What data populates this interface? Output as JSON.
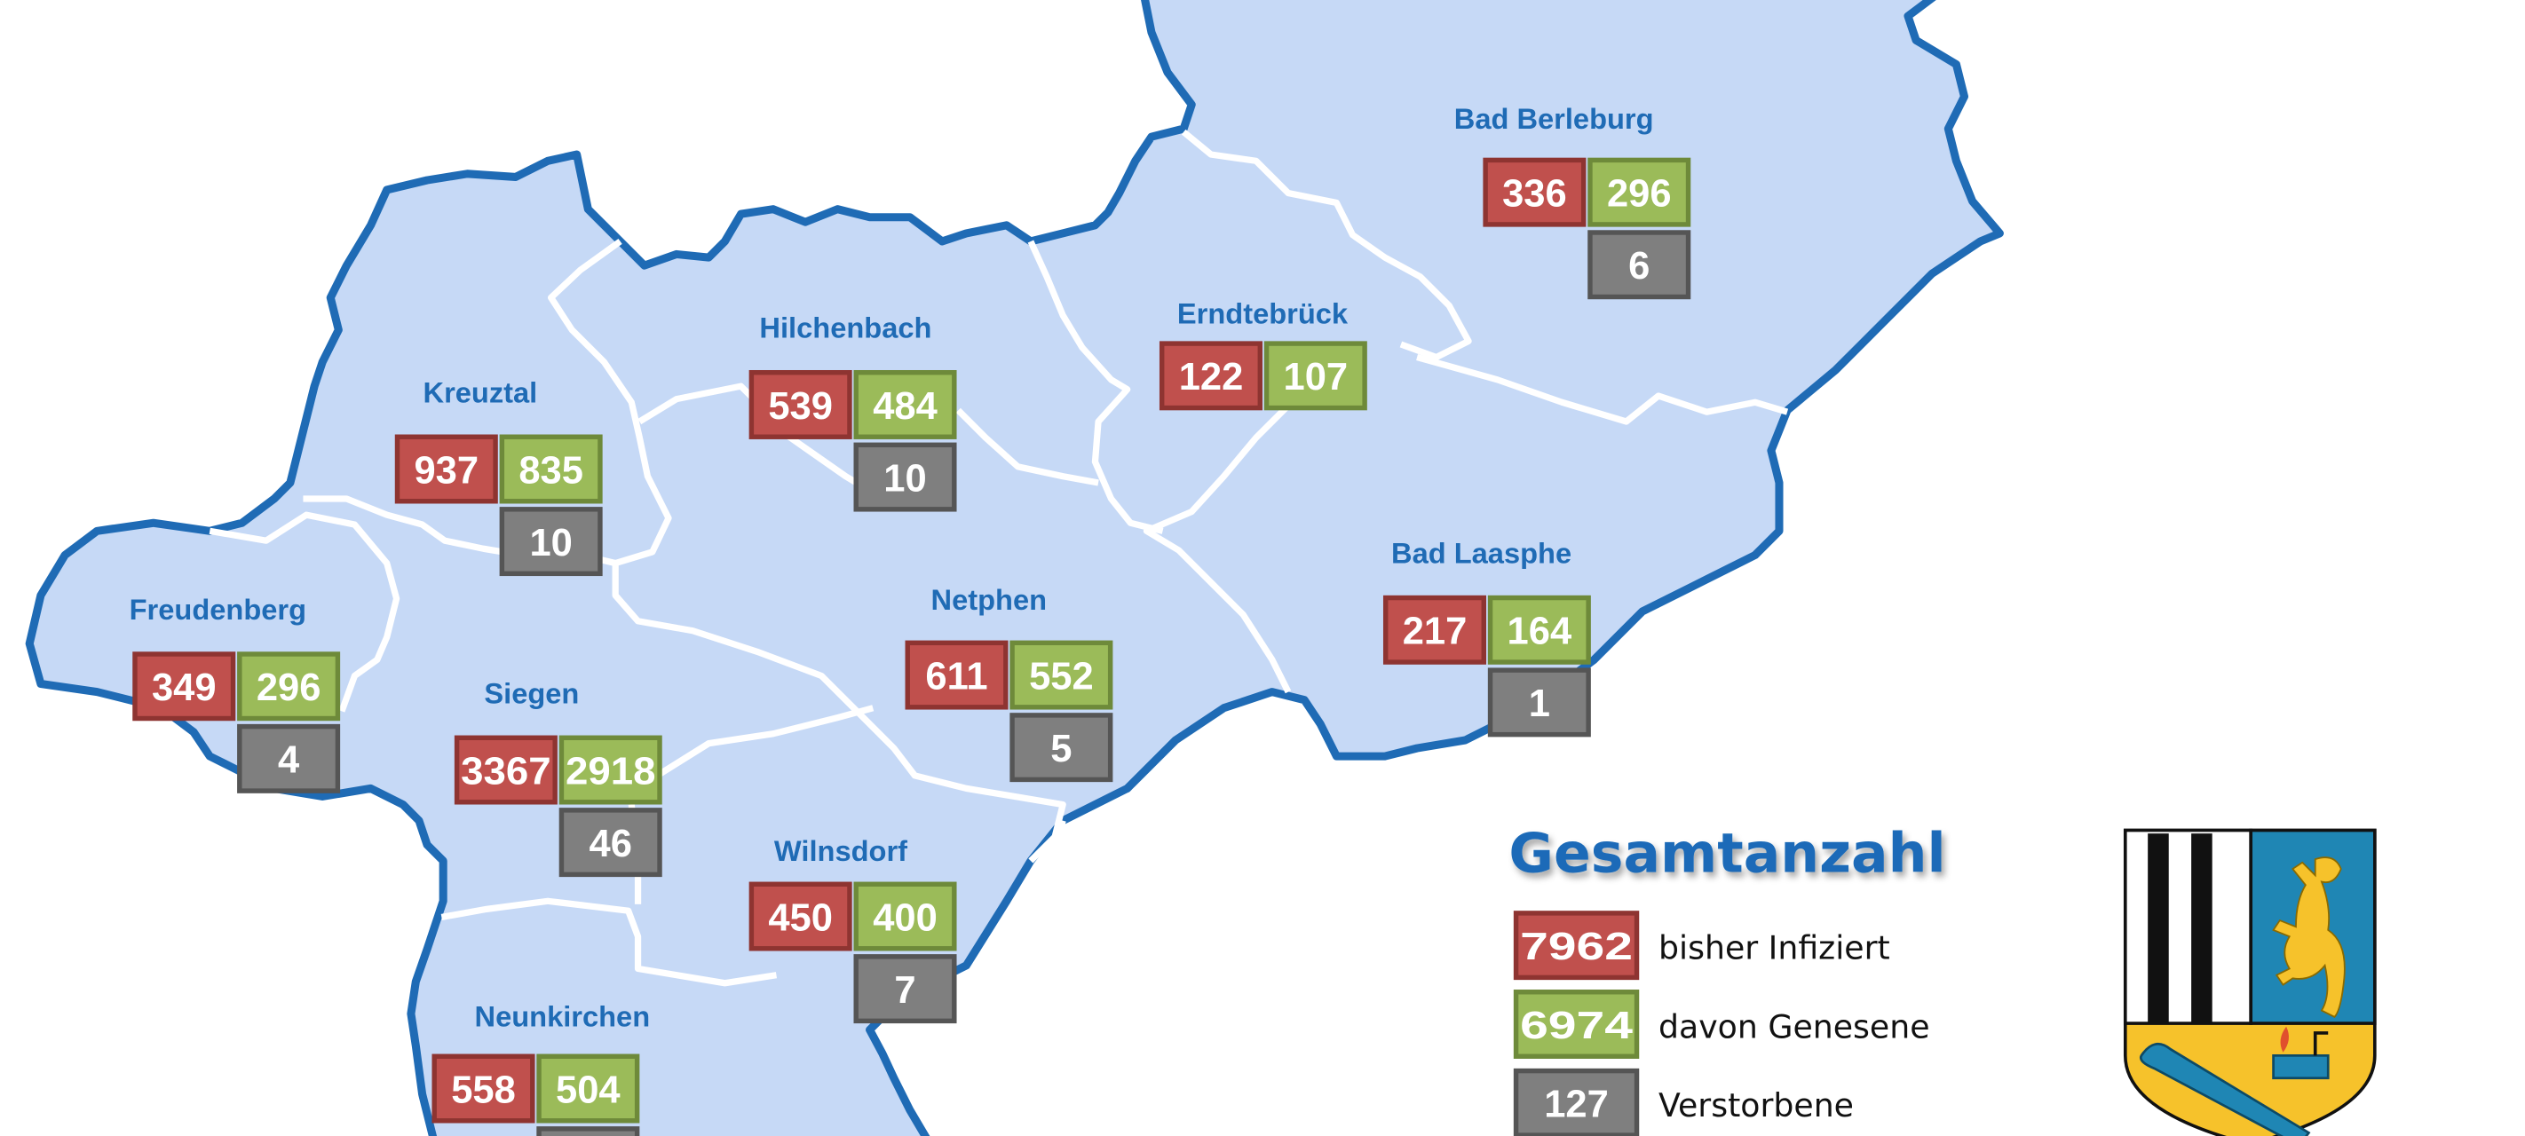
{
  "colors": {
    "district_fill": "#c6d9f6",
    "outer_border": "#1f6bb5",
    "inner_border": "#ffffff",
    "label": "#1f6bb5",
    "infected": "#c0504d",
    "recovered": "#9bbb59",
    "deaths": "#7f7f7f"
  },
  "districts": [
    {
      "name": "Bad Berleburg",
      "infected": "336",
      "recovered": "296",
      "deaths": "6"
    },
    {
      "name": "Erndtebrück",
      "infected": "122",
      "recovered": "107",
      "deaths": null
    },
    {
      "name": "Hilchenbach",
      "infected": "539",
      "recovered": "484",
      "deaths": "10"
    },
    {
      "name": "Kreuztal",
      "infected": "937",
      "recovered": "835",
      "deaths": "10"
    },
    {
      "name": "Freudenberg",
      "infected": "349",
      "recovered": "296",
      "deaths": "4"
    },
    {
      "name": "Siegen",
      "infected": "3367",
      "recovered": "2918",
      "deaths": "46"
    },
    {
      "name": "Netphen",
      "infected": "611",
      "recovered": "552",
      "deaths": "5"
    },
    {
      "name": "Bad Laasphe",
      "infected": "217",
      "recovered": "164",
      "deaths": "1"
    },
    {
      "name": "Wilnsdorf",
      "infected": "450",
      "recovered": "400",
      "deaths": "7"
    },
    {
      "name": "Neunkirchen",
      "infected": "558",
      "recovered": "504",
      "deaths": ""
    }
  ],
  "legend": {
    "title": "Gesamtanzahl",
    "items": [
      {
        "value": "7962",
        "label": "bisher Infiziert",
        "kind": "infected"
      },
      {
        "value": "6974",
        "label": "davon Genesene",
        "kind": "recovered"
      },
      {
        "value": "127",
        "label": "Verstorbene",
        "kind": "deaths"
      }
    ]
  },
  "coat_of_arms": {
    "icon": "kreis-siegen-wittgenstein-coat-of-arms"
  }
}
